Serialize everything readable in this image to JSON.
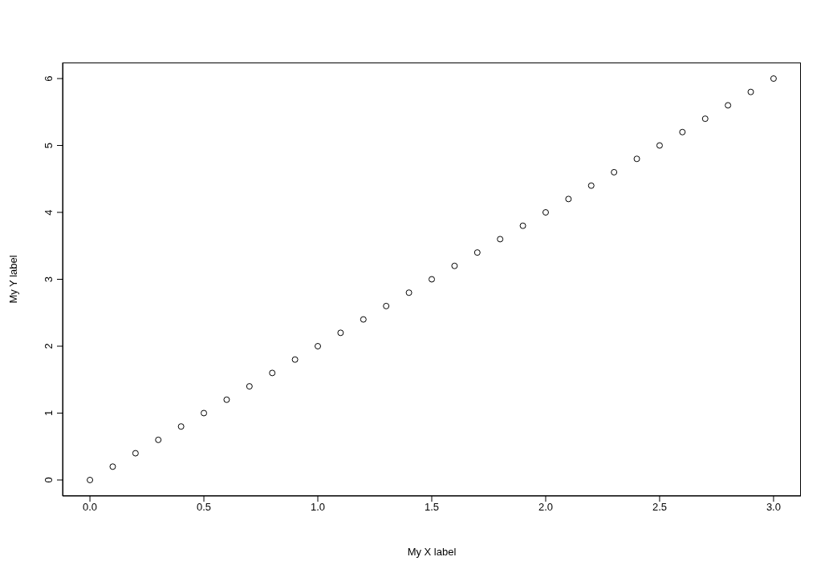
{
  "chart_data": {
    "type": "scatter",
    "xlabel": "My X label",
    "ylabel": "My Y label",
    "x": [
      0,
      0.1,
      0.2,
      0.3,
      0.4,
      0.5,
      0.6,
      0.7,
      0.8,
      0.9,
      1,
      1.1,
      1.2,
      1.3,
      1.4,
      1.5,
      1.6,
      1.7,
      1.8,
      1.9,
      2,
      2.1,
      2.2,
      2.3,
      2.4,
      2.5,
      2.6,
      2.7,
      2.8,
      2.9,
      3
    ],
    "values": [
      0,
      0.2,
      0.4,
      0.6,
      0.8,
      1,
      1.2,
      1.4,
      1.6,
      1.8,
      2,
      2.2,
      2.4,
      2.6,
      2.8,
      3,
      3.2,
      3.4,
      3.6,
      3.8,
      4,
      4.2,
      4.4,
      4.6,
      4.8,
      5,
      5.2,
      5.4,
      5.6,
      5.8,
      6
    ],
    "color": "#000000",
    "marker": "circle",
    "xlim": [
      -0.12,
      3.12
    ],
    "xticks": [
      {
        "value": 0,
        "label": "0.0"
      },
      {
        "value": 0.5,
        "label": "0.5"
      },
      {
        "value": 1,
        "label": "1.0"
      },
      {
        "value": 1.5,
        "label": "1.5"
      },
      {
        "value": 2,
        "label": "2.0"
      },
      {
        "value": 2.5,
        "label": "2.5"
      },
      {
        "value": 3,
        "label": "3.0"
      }
    ],
    "ylim": [
      -0.24,
      6.24
    ],
    "yticks": [
      0,
      1,
      2,
      3,
      4,
      5,
      6
    ]
  }
}
